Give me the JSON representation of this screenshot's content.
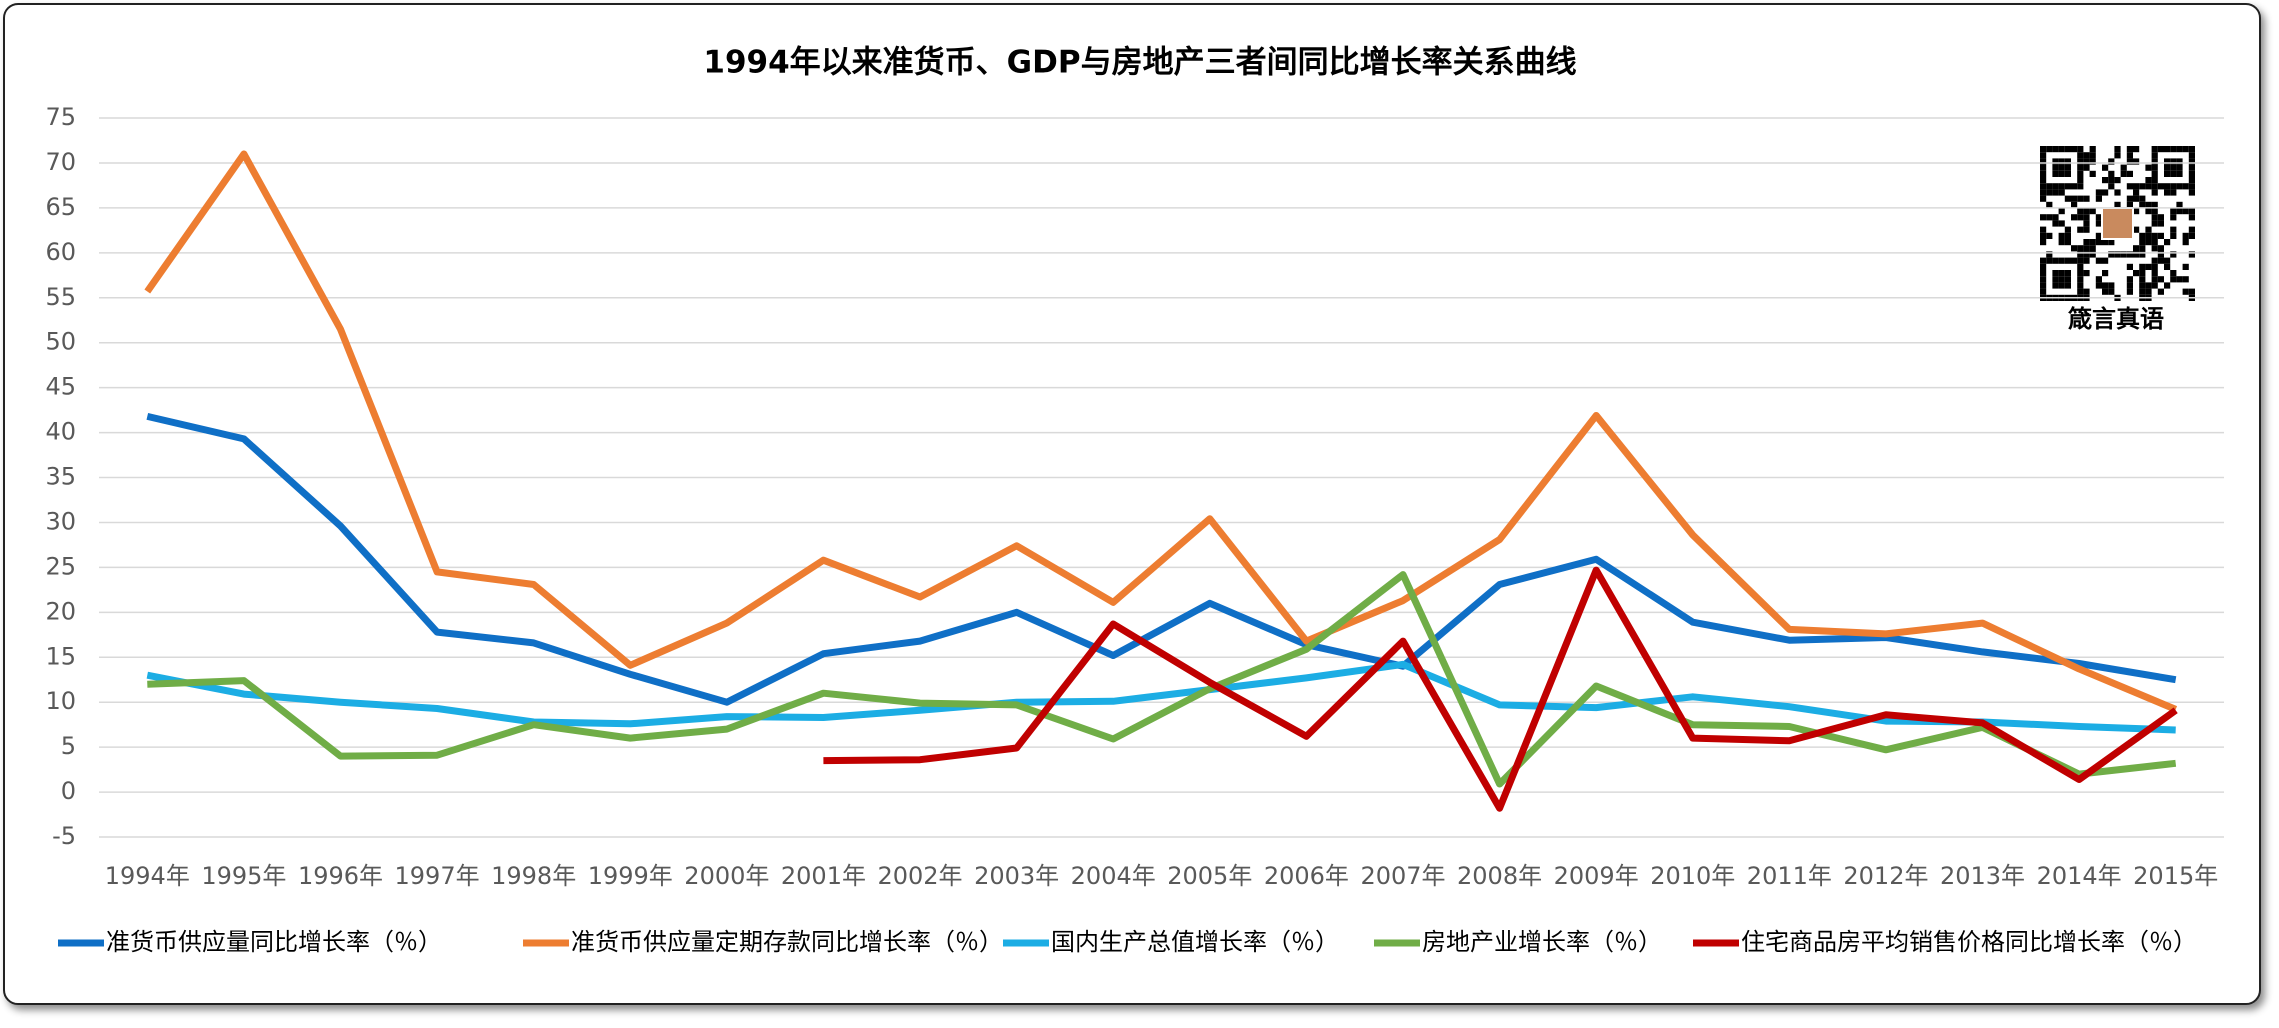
{
  "chart_data": {
    "type": "line",
    "title": "1994年以来准货币、GDP与房地产三者间同比增长率关系曲线",
    "categories": [
      "1994年",
      "1995年",
      "1996年",
      "1997年",
      "1998年",
      "1999年",
      "2000年",
      "2001年",
      "2002年",
      "2003年",
      "2004年",
      "2005年",
      "2006年",
      "2007年",
      "2008年",
      "2009年",
      "2010年",
      "2011年",
      "2012年",
      "2013年",
      "2014年",
      "2015年"
    ],
    "ylim": [
      -5,
      75
    ],
    "yticks": [
      -5,
      0,
      5,
      10,
      15,
      20,
      25,
      30,
      35,
      40,
      45,
      50,
      55,
      60,
      65,
      70,
      75
    ],
    "grid": true,
    "legend": "bottom",
    "qr_label": "箴言真语",
    "series": [
      {
        "name": "准货币供应量同比增长率（％）",
        "color": "#0f6fc6",
        "values": [
          41.8,
          39.3,
          29.6,
          17.8,
          16.6,
          13.1,
          10.0,
          15.4,
          16.8,
          20.0,
          15.2,
          21.0,
          16.4,
          14.0,
          23.1,
          25.9,
          18.9,
          16.9,
          17.2,
          15.6,
          14.3,
          12.5
        ]
      },
      {
        "name": "准货币供应量定期存款同比增长率（％）",
        "color": "#ed7d31",
        "values": [
          55.7,
          71.0,
          51.5,
          24.5,
          23.1,
          14.1,
          18.8,
          25.8,
          21.7,
          27.4,
          21.1,
          30.4,
          16.8,
          21.3,
          28.1,
          41.9,
          28.6,
          18.1,
          17.6,
          18.8,
          13.7,
          9.2
        ]
      },
      {
        "name": "国内生产总值增长率（％）",
        "color": "#1cade4",
        "values": [
          13.0,
          10.9,
          10.0,
          9.3,
          7.8,
          7.6,
          8.4,
          8.3,
          9.1,
          10.0,
          10.1,
          11.4,
          12.7,
          14.2,
          9.7,
          9.4,
          10.6,
          9.5,
          7.9,
          7.8,
          7.3,
          6.9
        ]
      },
      {
        "name": "房地产业增长率（％）",
        "color": "#70ad47",
        "values": [
          12.0,
          12.4,
          4.0,
          4.1,
          7.5,
          6.0,
          7.0,
          11.0,
          9.9,
          9.7,
          5.9,
          11.5,
          15.9,
          24.2,
          0.9,
          11.8,
          7.5,
          7.3,
          4.7,
          7.2,
          2.0,
          3.2
        ]
      },
      {
        "name": "住宅商品房平均销售价格同比增长率（％）",
        "color": "#c00000",
        "values": [
          null,
          null,
          null,
          null,
          null,
          null,
          null,
          3.5,
          3.6,
          4.9,
          18.7,
          12.2,
          6.2,
          16.8,
          -1.8,
          24.7,
          6.0,
          5.7,
          8.6,
          7.7,
          1.4,
          9.1
        ]
      }
    ]
  }
}
